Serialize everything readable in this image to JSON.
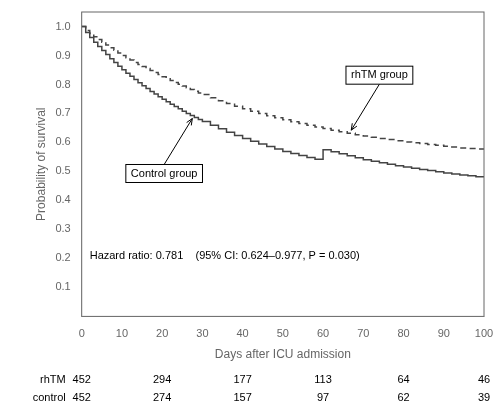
{
  "chart_data": {
    "type": "step",
    "xlabel": "Days after ICU admission",
    "ylabel": "Probability of survival",
    "xlim": [
      0,
      100
    ],
    "ylim": [
      0.0,
      1.05
    ],
    "xticks": [
      0,
      10,
      20,
      30,
      40,
      50,
      60,
      70,
      80,
      90,
      100
    ],
    "yticks": [
      0.1,
      0.2,
      0.3,
      0.4,
      0.5,
      0.6,
      0.7,
      0.8,
      0.9,
      {
        "value": 1.0,
        "label": "1.0"
      }
    ],
    "grid": false,
    "x": [
      0,
      1,
      2,
      3,
      4,
      5,
      6,
      7,
      8,
      9,
      10,
      11,
      12,
      13,
      14,
      15,
      16,
      17,
      18,
      19,
      20,
      21,
      22,
      23,
      24,
      25,
      26,
      27,
      28,
      29,
      30,
      32,
      34,
      36,
      38,
      40,
      42,
      44,
      46,
      48,
      50,
      52,
      54,
      56,
      58,
      60,
      62,
      64,
      66,
      68,
      70,
      72,
      74,
      76,
      78,
      80,
      82,
      84,
      86,
      88,
      90,
      92,
      94,
      96,
      98,
      100
    ],
    "series": [
      {
        "name": "rhTM group",
        "color": "#444444",
        "line_style": "dashed",
        "values": [
          1.0,
          0.986,
          0.976,
          0.965,
          0.955,
          0.946,
          0.936,
          0.927,
          0.918,
          0.909,
          0.9,
          0.892,
          0.884,
          0.876,
          0.869,
          0.862,
          0.855,
          0.848,
          0.841,
          0.834,
          0.827,
          0.82,
          0.814,
          0.807,
          0.801,
          0.795,
          0.789,
          0.783,
          0.777,
          0.771,
          0.765,
          0.754,
          0.744,
          0.734,
          0.725,
          0.716,
          0.708,
          0.7,
          0.692,
          0.685,
          0.678,
          0.671,
          0.665,
          0.659,
          0.653,
          0.648,
          0.642,
          0.637,
          0.632,
          0.627,
          0.622,
          0.618,
          0.614,
          0.61,
          0.606,
          0.602,
          0.599,
          0.596,
          0.593,
          0.59,
          0.587,
          0.584,
          0.581,
          0.579,
          0.577,
          0.575
        ]
      },
      {
        "name": "Control group",
        "color": "#444444",
        "line_style": "solid",
        "values": [
          1.0,
          0.979,
          0.962,
          0.946,
          0.931,
          0.917,
          0.903,
          0.889,
          0.876,
          0.863,
          0.851,
          0.839,
          0.828,
          0.817,
          0.806,
          0.796,
          0.786,
          0.776,
          0.767,
          0.758,
          0.749,
          0.74,
          0.732,
          0.724,
          0.716,
          0.708,
          0.7,
          0.693,
          0.686,
          0.679,
          0.672,
          0.659,
          0.647,
          0.635,
          0.624,
          0.614,
          0.604,
          0.595,
          0.586,
          0.577,
          0.569,
          0.562,
          0.555,
          0.548,
          0.542,
          0.575,
          0.568,
          0.561,
          0.554,
          0.547,
          0.54,
          0.535,
          0.53,
          0.525,
          0.52,
          0.515,
          0.511,
          0.507,
          0.503,
          0.499,
          0.495,
          0.491,
          0.488,
          0.485,
          0.482,
          0.479
        ]
      }
    ],
    "annotations": [
      "Hazard ratio: 0.781    (95% CI: 0.624–0.977, P = 0.030)"
    ],
    "at_risk": {
      "x": [
        0,
        20,
        40,
        60,
        80,
        100
      ],
      "rows": [
        {
          "name": "rhTM",
          "values": [
            452,
            294,
            177,
            113,
            64,
            46
          ]
        },
        {
          "name": "control",
          "values": [
            452,
            274,
            157,
            97,
            62,
            39
          ]
        }
      ]
    }
  }
}
